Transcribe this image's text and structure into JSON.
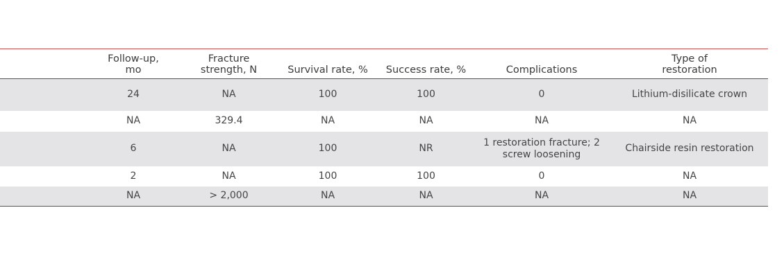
{
  "table": {
    "headers": [
      "",
      "Follow-up,\nmo",
      "Fracture\nstrength, N",
      "Survival rate, %",
      "Success rate, %",
      "Complications",
      "Type of\nrestoration"
    ],
    "rows": [
      [
        "",
        "24",
        "NA",
        "100",
        "100",
        "0",
        "Lithium-disilicate crown"
      ],
      [
        "",
        "NA",
        "329.4",
        "NA",
        "NA",
        "NA",
        "NA"
      ],
      [
        "",
        "6",
        "NA",
        "100",
        "NR",
        "1 restoration fracture; 2\nscrew loosening",
        "Chairside resin restoration"
      ],
      [
        "",
        "2",
        "NA",
        "100",
        "100",
        "0",
        "NA"
      ],
      [
        "",
        "NA",
        "> 2,000",
        "NA",
        "NA",
        "NA",
        "NA"
      ]
    ]
  }
}
